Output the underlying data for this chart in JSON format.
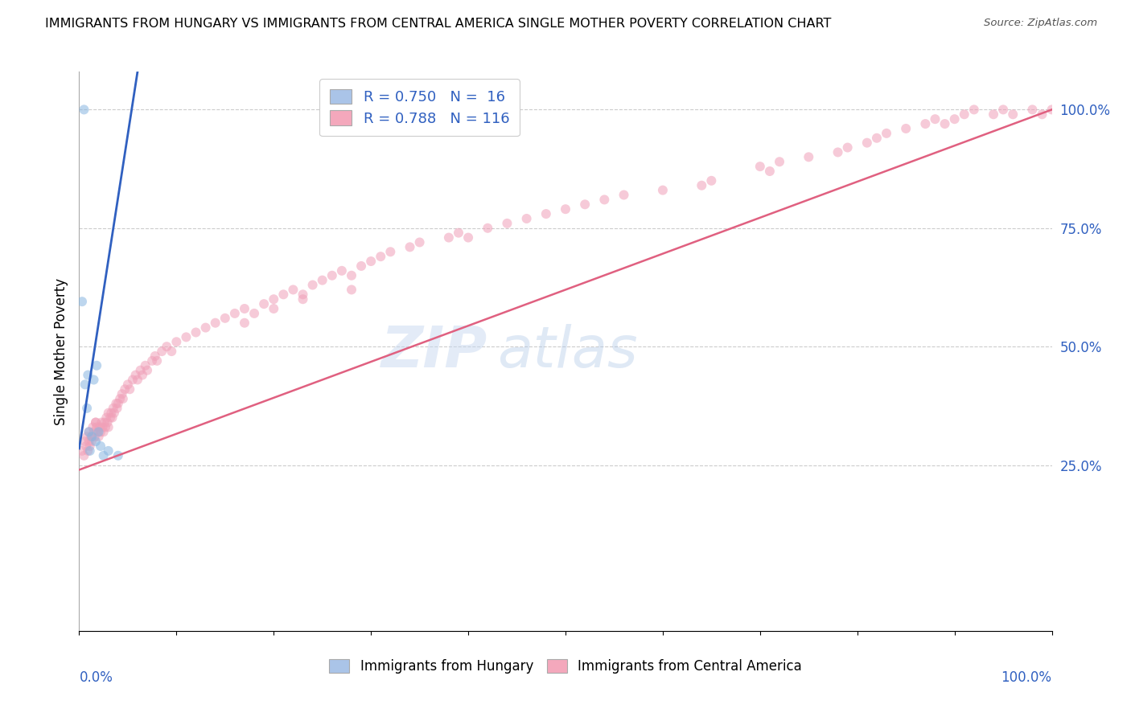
{
  "title": "IMMIGRANTS FROM HUNGARY VS IMMIGRANTS FROM CENTRAL AMERICA SINGLE MOTHER POVERTY CORRELATION CHART",
  "source": "Source: ZipAtlas.com",
  "ylabel": "Single Mother Poverty",
  "legend1_label": "R = 0.750   N =  16",
  "legend2_label": "R = 0.788   N = 116",
  "legend1_color": "#aac4e8",
  "legend2_color": "#f4a8bc",
  "scatter1_color": "#87b5e0",
  "scatter2_color": "#f0a0b8",
  "line1_color": "#3060c0",
  "line2_color": "#e06080",
  "watermark_text": "ZIP",
  "watermark_text2": "atlas",
  "ytick_labels": [
    "25.0%",
    "50.0%",
    "75.0%",
    "100.0%"
  ],
  "ytick_values": [
    0.25,
    0.5,
    0.75,
    1.0
  ],
  "xmin": 0.0,
  "xmax": 1.0,
  "ymin": -0.1,
  "ymax": 1.08,
  "hungary_x": [
    0.003,
    0.005,
    0.006,
    0.008,
    0.009,
    0.01,
    0.011,
    0.013,
    0.015,
    0.017,
    0.018,
    0.02,
    0.022,
    0.025,
    0.03,
    0.04
  ],
  "hungary_y": [
    0.595,
    1.0,
    0.42,
    0.37,
    0.44,
    0.32,
    0.28,
    0.31,
    0.43,
    0.3,
    0.46,
    0.32,
    0.29,
    0.27,
    0.28,
    0.27
  ],
  "hungary_line_x": [
    0.0,
    0.06
  ],
  "hungary_line_y": [
    0.285,
    1.08
  ],
  "central_x": [
    0.003,
    0.005,
    0.006,
    0.007,
    0.008,
    0.009,
    0.01,
    0.01,
    0.011,
    0.012,
    0.013,
    0.014,
    0.015,
    0.016,
    0.017,
    0.018,
    0.019,
    0.02,
    0.021,
    0.022,
    0.023,
    0.024,
    0.025,
    0.026,
    0.027,
    0.028,
    0.029,
    0.03,
    0.032,
    0.033,
    0.034,
    0.035,
    0.036,
    0.038,
    0.039,
    0.04,
    0.042,
    0.044,
    0.045,
    0.047,
    0.05,
    0.052,
    0.055,
    0.058,
    0.06,
    0.063,
    0.065,
    0.068,
    0.07,
    0.075,
    0.078,
    0.08,
    0.085,
    0.09,
    0.095,
    0.1,
    0.11,
    0.12,
    0.13,
    0.14,
    0.15,
    0.16,
    0.17,
    0.18,
    0.19,
    0.2,
    0.21,
    0.22,
    0.23,
    0.24,
    0.25,
    0.26,
    0.27,
    0.28,
    0.29,
    0.3,
    0.31,
    0.32,
    0.34,
    0.35,
    0.38,
    0.39,
    0.4,
    0.42,
    0.44,
    0.46,
    0.48,
    0.5,
    0.52,
    0.54,
    0.56,
    0.6,
    0.64,
    0.65,
    0.7,
    0.71,
    0.72,
    0.75,
    0.78,
    0.79,
    0.81,
    0.82,
    0.83,
    0.85,
    0.87,
    0.88,
    0.89,
    0.9,
    0.91,
    0.92,
    0.94,
    0.95,
    0.96,
    0.98,
    0.99,
    1.0,
    0.17,
    0.2,
    0.23,
    0.28,
    0.017,
    0.03
  ],
  "central_y": [
    0.28,
    0.27,
    0.3,
    0.29,
    0.31,
    0.28,
    0.3,
    0.32,
    0.29,
    0.31,
    0.3,
    0.33,
    0.32,
    0.31,
    0.34,
    0.33,
    0.32,
    0.31,
    0.33,
    0.32,
    0.34,
    0.33,
    0.32,
    0.34,
    0.33,
    0.35,
    0.34,
    0.33,
    0.35,
    0.36,
    0.35,
    0.37,
    0.36,
    0.38,
    0.37,
    0.38,
    0.39,
    0.4,
    0.39,
    0.41,
    0.42,
    0.41,
    0.43,
    0.44,
    0.43,
    0.45,
    0.44,
    0.46,
    0.45,
    0.47,
    0.48,
    0.47,
    0.49,
    0.5,
    0.49,
    0.51,
    0.52,
    0.53,
    0.54,
    0.55,
    0.56,
    0.57,
    0.58,
    0.57,
    0.59,
    0.6,
    0.61,
    0.62,
    0.61,
    0.63,
    0.64,
    0.65,
    0.66,
    0.65,
    0.67,
    0.68,
    0.69,
    0.7,
    0.71,
    0.72,
    0.73,
    0.74,
    0.73,
    0.75,
    0.76,
    0.77,
    0.78,
    0.79,
    0.8,
    0.81,
    0.82,
    0.83,
    0.84,
    0.85,
    0.88,
    0.87,
    0.89,
    0.9,
    0.91,
    0.92,
    0.93,
    0.94,
    0.95,
    0.96,
    0.97,
    0.98,
    0.97,
    0.98,
    0.99,
    1.0,
    0.99,
    1.0,
    0.99,
    1.0,
    0.99,
    1.0,
    0.55,
    0.58,
    0.6,
    0.62,
    0.34,
    0.36
  ],
  "central_line_x": [
    0.0,
    1.0
  ],
  "central_line_y": [
    0.24,
    1.0
  ],
  "scatter_size": 75,
  "scatter_alpha": 0.55,
  "legend_fontsize": 13,
  "title_fontsize": 11.5,
  "bottom_legend1": "Immigrants from Hungary",
  "bottom_legend2": "Immigrants from Central America",
  "xtick_positions": [
    0.0,
    0.1,
    0.2,
    0.3,
    0.4,
    0.5,
    0.6,
    0.7,
    0.8,
    0.9,
    1.0
  ]
}
